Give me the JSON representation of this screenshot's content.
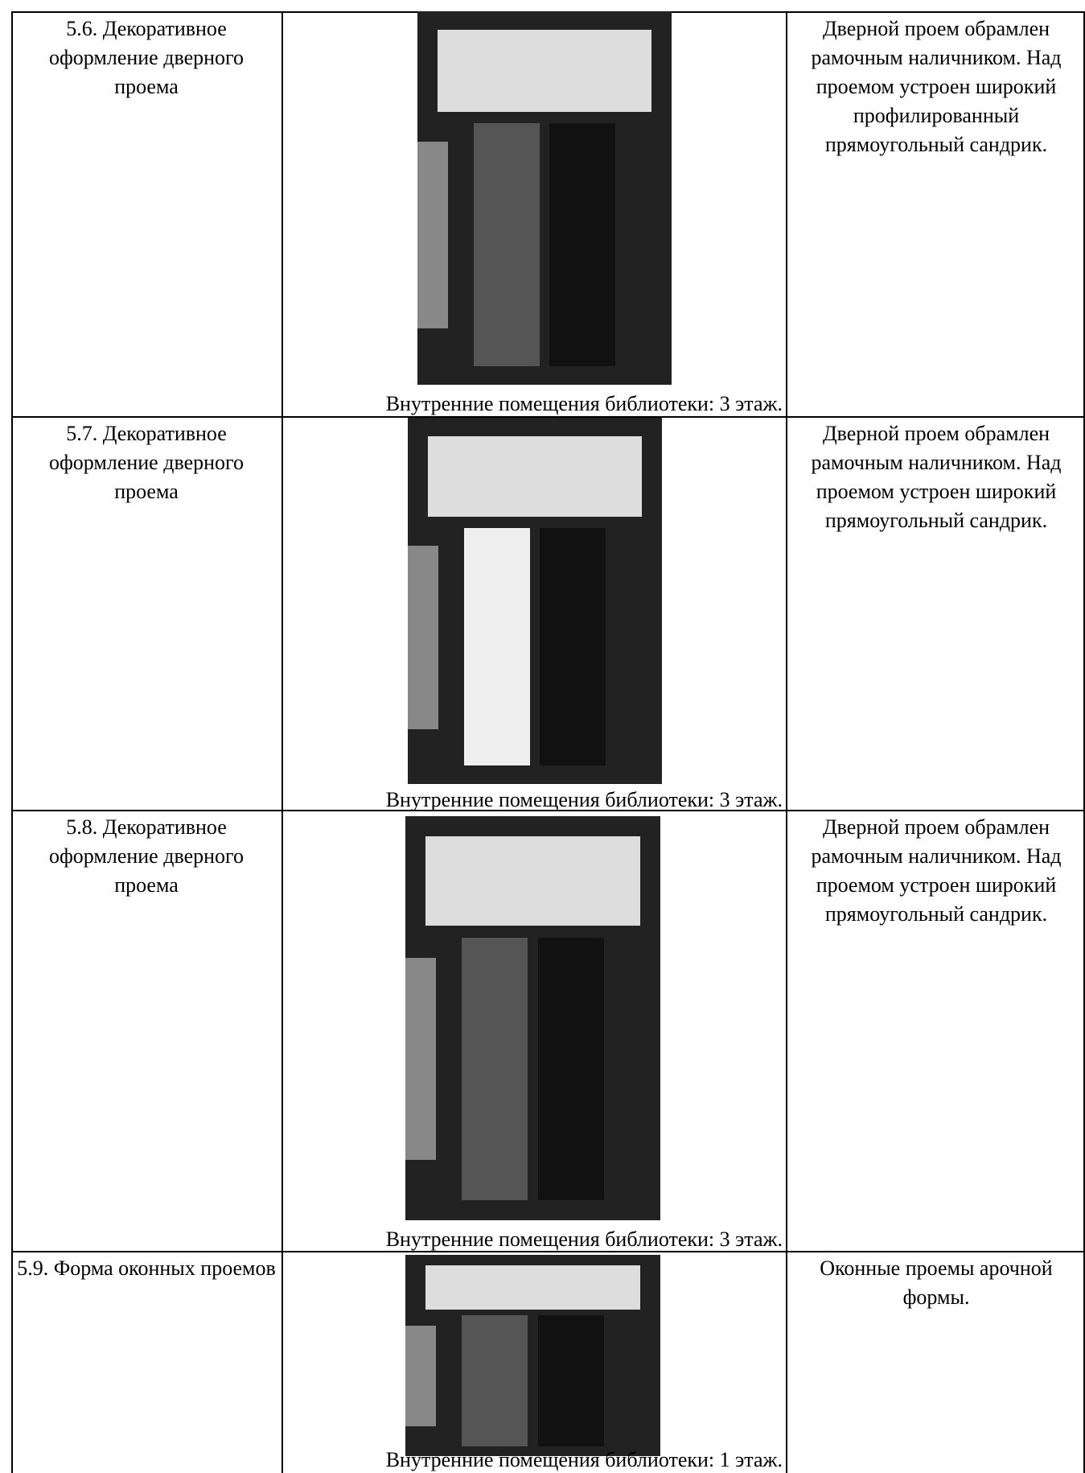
{
  "table": {
    "rows": [
      {
        "label": "5.6. Декоративное оформление дверного проема",
        "caption": "Внутренние помещения библиотеки: 3 этаж.",
        "description": "Дверной проем обрамлен рамочным наличником. Над проемом устроен широкий профилированный прямоугольный сандрик."
      },
      {
        "label": "5.7. Декоративное оформление дверного проема",
        "caption": "Внутренние помещения библиотеки: 3 этаж.",
        "description": "Дверной проем обрамлен рамочным наличником. Над проемом устроен широкий прямоугольный сандрик."
      },
      {
        "label": "5.8. Декоративное оформление дверного проема",
        "caption": "Внутренние помещения библиотеки: 3 этаж.",
        "description": "Дверной проем обрамлен рамочным наличником. Над проемом устроен широкий прямоугольный сандрик."
      },
      {
        "label": "5.9. Форма оконных проемов",
        "caption": "Внутренние помещения библиотеки: 1 этаж.",
        "description": "Оконные проемы арочной формы."
      }
    ]
  }
}
